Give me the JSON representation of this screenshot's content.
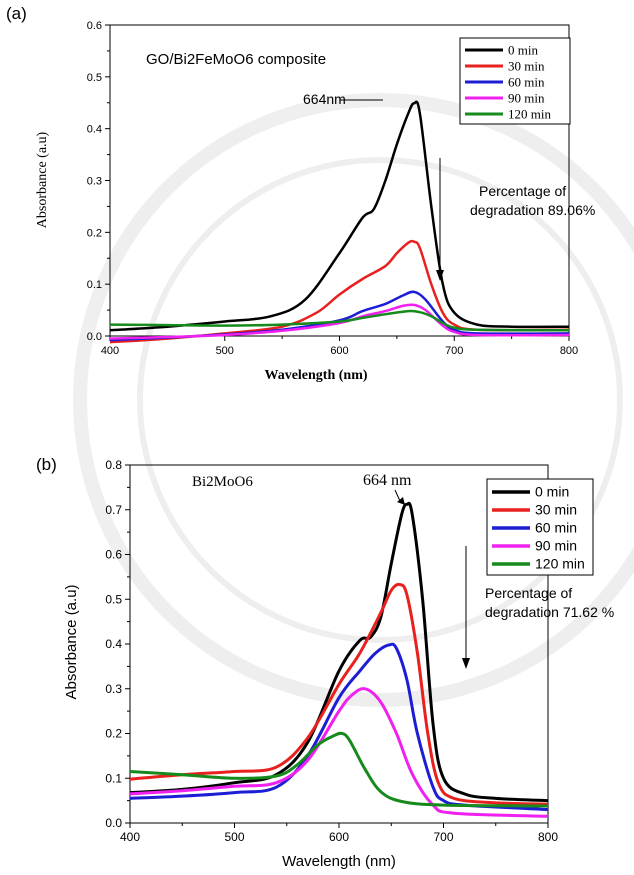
{
  "chart_data": [
    {
      "panel_label": "(a)",
      "type": "line",
      "title": "GO/Bi2FeMoO6 composite",
      "xlabel": "Wavelength (nm)",
      "ylabel": "Absorbance (a.u)",
      "xlim": [
        400,
        800
      ],
      "ylim": [
        0.0,
        0.6
      ],
      "xticks": [
        "400",
        "500",
        "600",
        "700",
        "800"
      ],
      "yticks": [
        "0.0",
        "0.1",
        "0.2",
        "0.3",
        "0.4",
        "0.5",
        "0.6"
      ],
      "peak_annotation": "664nm",
      "side_note": [
        "Percentage of",
        "degradation 89.06%"
      ],
      "legend": "top-right",
      "series": [
        {
          "name": "0 min",
          "color": "#000000",
          "x": [
            400,
            450,
            500,
            540,
            570,
            600,
            620,
            630,
            640,
            650,
            660,
            665,
            670,
            680,
            690,
            700,
            720,
            750,
            800
          ],
          "y": [
            0.011,
            0.018,
            0.028,
            0.038,
            0.07,
            0.16,
            0.228,
            0.245,
            0.3,
            0.37,
            0.43,
            0.449,
            0.43,
            0.25,
            0.1,
            0.045,
            0.022,
            0.018,
            0.018
          ]
        },
        {
          "name": "30 min",
          "color": "#e8201e",
          "x": [
            400,
            450,
            500,
            550,
            580,
            600,
            620,
            640,
            650,
            660,
            665,
            670,
            680,
            690,
            700,
            720,
            800
          ],
          "y": [
            -0.012,
            -0.005,
            0.005,
            0.018,
            0.045,
            0.08,
            0.11,
            0.135,
            0.16,
            0.18,
            0.182,
            0.17,
            0.1,
            0.045,
            0.022,
            0.012,
            0.012
          ]
        },
        {
          "name": "60 min",
          "color": "#1d1ed4",
          "x": [
            400,
            450,
            500,
            550,
            600,
            620,
            640,
            655,
            665,
            675,
            690,
            700,
            720,
            800
          ],
          "y": [
            -0.008,
            -0.003,
            0.003,
            0.012,
            0.03,
            0.048,
            0.062,
            0.078,
            0.085,
            0.07,
            0.028,
            0.012,
            0.005,
            0.005
          ]
        },
        {
          "name": "90 min",
          "color": "#f020f0",
          "x": [
            400,
            450,
            500,
            550,
            600,
            620,
            640,
            655,
            665,
            675,
            690,
            700,
            720,
            800
          ],
          "y": [
            -0.005,
            -0.002,
            0.002,
            0.01,
            0.025,
            0.038,
            0.048,
            0.058,
            0.06,
            0.05,
            0.02,
            0.008,
            0.002,
            0.002
          ]
        },
        {
          "name": "120 min",
          "color": "#168a1c",
          "x": [
            400,
            450,
            500,
            550,
            600,
            620,
            640,
            660,
            670,
            680,
            690,
            700,
            720,
            800
          ],
          "y": [
            0.022,
            0.021,
            0.02,
            0.022,
            0.028,
            0.035,
            0.042,
            0.048,
            0.046,
            0.038,
            0.025,
            0.016,
            0.012,
            0.011
          ]
        }
      ]
    },
    {
      "panel_label": "(b)",
      "type": "line",
      "title": "Bi2MoO6",
      "xlabel": "Wavelength (nm)",
      "ylabel": "Absorbance (a.u)",
      "xlim": [
        400,
        800
      ],
      "ylim": [
        0.0,
        0.8
      ],
      "xticks": [
        "400",
        "500",
        "600",
        "700",
        "800"
      ],
      "yticks": [
        "0.0",
        "0.1",
        "0.2",
        "0.3",
        "0.4",
        "0.5",
        "0.6",
        "0.7",
        "0.8"
      ],
      "peak_annotation": "664 nm",
      "side_note": [
        "Percentage of",
        "degradation 71.62 %"
      ],
      "legend": "top-right",
      "series": [
        {
          "name": "0 min",
          "color": "#000000",
          "x": [
            400,
            450,
            500,
            540,
            570,
            600,
            620,
            630,
            640,
            650,
            660,
            665,
            670,
            680,
            690,
            700,
            720,
            750,
            800
          ],
          "y": [
            0.068,
            0.075,
            0.09,
            0.108,
            0.18,
            0.34,
            0.408,
            0.415,
            0.46,
            0.58,
            0.69,
            0.712,
            0.69,
            0.5,
            0.22,
            0.1,
            0.065,
            0.055,
            0.05
          ]
        },
        {
          "name": "30 min",
          "color": "#e8201e",
          "x": [
            400,
            450,
            500,
            540,
            570,
            600,
            620,
            640,
            650,
            658,
            665,
            675,
            685,
            695,
            710,
            750,
            800
          ],
          "y": [
            0.098,
            0.108,
            0.115,
            0.125,
            0.19,
            0.31,
            0.38,
            0.47,
            0.52,
            0.533,
            0.51,
            0.38,
            0.2,
            0.09,
            0.055,
            0.045,
            0.042
          ]
        },
        {
          "name": "60 min",
          "color": "#1d1ed4",
          "x": [
            400,
            450,
            500,
            540,
            570,
            600,
            620,
            635,
            648,
            655,
            665,
            675,
            690,
            700,
            720,
            800
          ],
          "y": [
            0.055,
            0.06,
            0.068,
            0.08,
            0.15,
            0.28,
            0.34,
            0.38,
            0.398,
            0.39,
            0.32,
            0.2,
            0.08,
            0.05,
            0.04,
            0.03
          ]
        },
        {
          "name": "90 min",
          "color": "#f020f0",
          "x": [
            400,
            450,
            500,
            540,
            570,
            600,
            612,
            625,
            640,
            655,
            670,
            690,
            710,
            800
          ],
          "y": [
            0.065,
            0.072,
            0.082,
            0.09,
            0.14,
            0.25,
            0.285,
            0.3,
            0.27,
            0.2,
            0.11,
            0.04,
            0.022,
            0.015
          ]
        },
        {
          "name": "120 min",
          "color": "#168a1c",
          "x": [
            400,
            450,
            500,
            540,
            560,
            580,
            595,
            603,
            610,
            625,
            640,
            660,
            700,
            800
          ],
          "y": [
            0.115,
            0.108,
            0.1,
            0.105,
            0.13,
            0.175,
            0.195,
            0.2,
            0.185,
            0.12,
            0.07,
            0.048,
            0.04,
            0.038
          ]
        }
      ]
    }
  ]
}
